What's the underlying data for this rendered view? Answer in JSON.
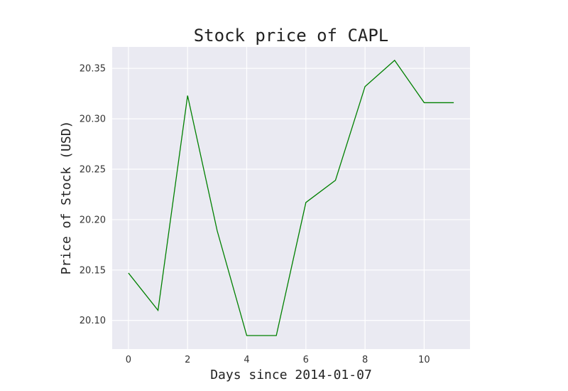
{
  "chart_data": {
    "type": "line",
    "title": "Stock price of CAPL",
    "xlabel": "Days since 2014-01-07",
    "ylabel": "Price of Stock (USD)",
    "x": [
      0,
      1,
      2,
      3,
      4,
      5,
      6,
      7,
      8,
      9,
      10,
      11
    ],
    "series": [
      {
        "values": [
          20.147,
          20.11,
          20.323,
          20.189,
          20.085,
          20.085,
          20.217,
          20.239,
          20.332,
          20.358,
          20.316,
          20.316
        ],
        "color": "#008000"
      }
    ],
    "xlim": [
      -0.55,
      11.55
    ],
    "ylim": [
      20.0716,
      20.3713
    ],
    "xticks": [
      0,
      2,
      4,
      6,
      8,
      10
    ],
    "xtick_labels": [
      "0",
      "2",
      "4",
      "6",
      "8",
      "10"
    ],
    "yticks": [
      20.1,
      20.15,
      20.2,
      20.25,
      20.3,
      20.35
    ],
    "ytick_labels": [
      "20.10",
      "20.15",
      "20.20",
      "20.25",
      "20.30",
      "20.35"
    ],
    "grid": true,
    "style": {
      "background": "#eaeaf2",
      "grid_color": "#ffffff"
    }
  }
}
